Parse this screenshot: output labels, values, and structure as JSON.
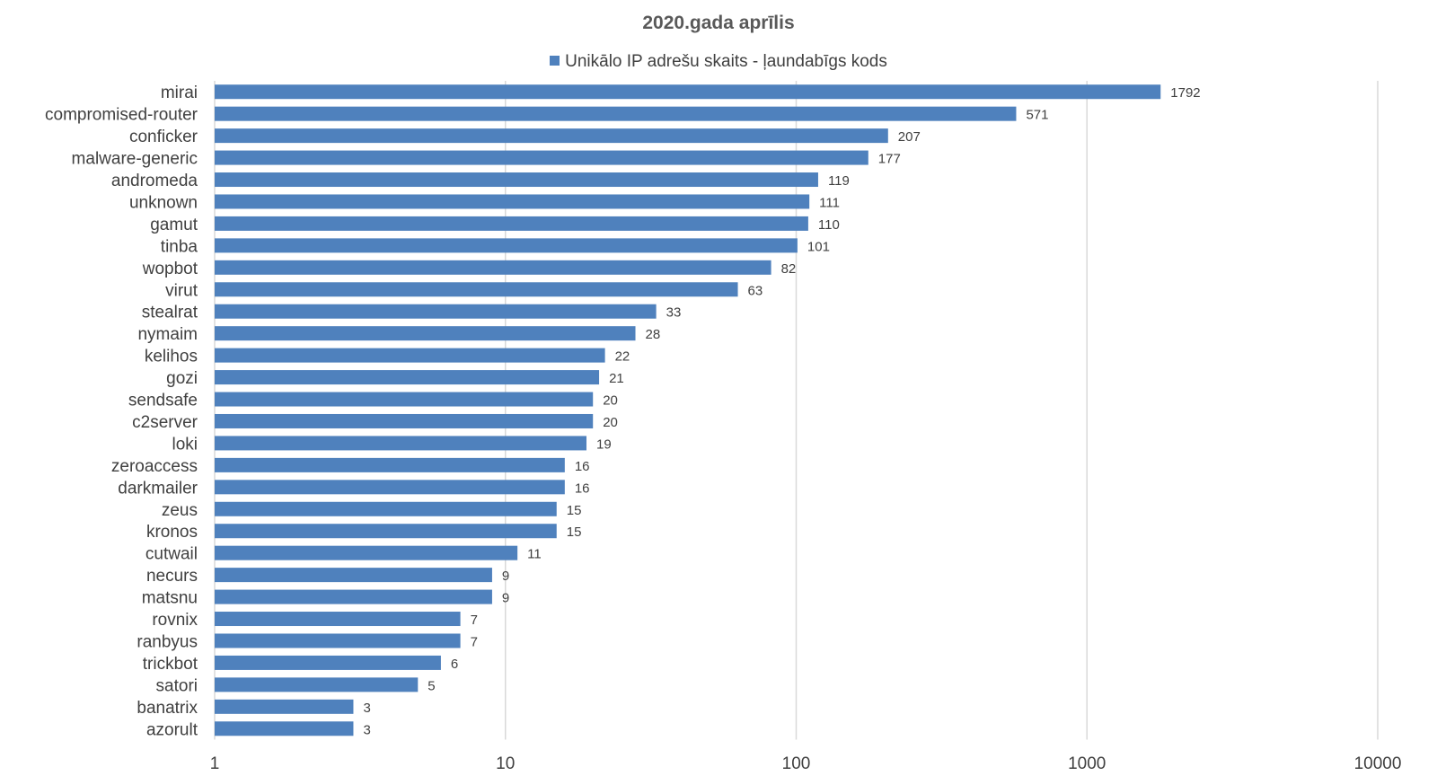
{
  "chart_data": {
    "type": "bar",
    "orientation": "horizontal",
    "title": "2020.gada aprīlis",
    "x_scale": "log",
    "xlim": [
      1,
      10000
    ],
    "x_ticks": [
      "1",
      "10",
      "100",
      "1000",
      "10000"
    ],
    "grid": true,
    "legend_position": "top",
    "bar_color": "#4f81bd",
    "series": [
      {
        "name": "Unikālo IP adrešu skaits -  ļaundabīgs kods",
        "categories": [
          "mirai",
          "compromised-router",
          "conficker",
          "malware-generic",
          "andromeda",
          "unknown",
          "gamut",
          "tinba",
          "wopbot",
          "virut",
          "stealrat",
          "nymaim",
          "kelihos",
          "gozi",
          "sendsafe",
          "c2server",
          "loki",
          "zeroaccess",
          "darkmailer",
          "zeus",
          "kronos",
          "cutwail",
          "necurs",
          "matsnu",
          "rovnix",
          "ranbyus",
          "trickbot",
          "satori",
          "banatrix",
          "azorult"
        ],
        "values": [
          1792,
          571,
          207,
          177,
          119,
          111,
          110,
          101,
          82,
          63,
          33,
          28,
          22,
          21,
          20,
          20,
          19,
          16,
          16,
          15,
          15,
          11,
          9,
          9,
          7,
          7,
          6,
          5,
          3,
          3
        ]
      }
    ]
  }
}
